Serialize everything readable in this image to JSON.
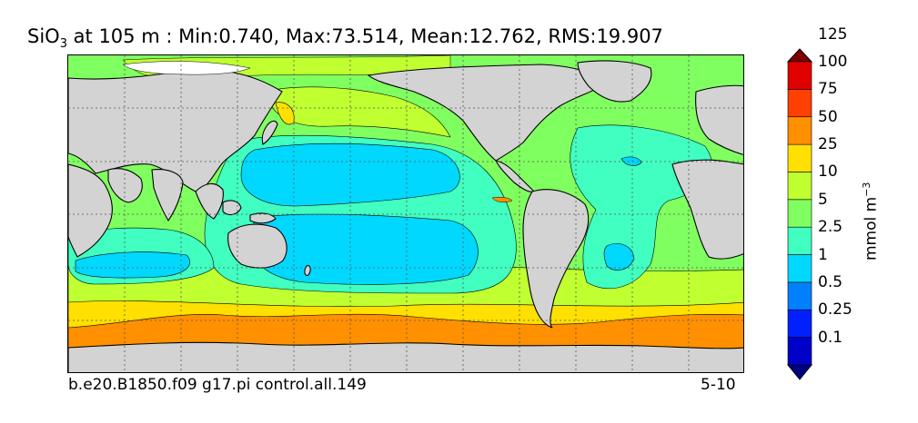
{
  "title": {
    "species_main": "SiO",
    "species_sub": "3",
    "rest": " at 105 m : Min:0.740, Max:73.514, Mean:12.762, RMS:19.907"
  },
  "footer": {
    "case": "b.e20.B1850.f09 g17.pi control.all.149",
    "years": "5-10"
  },
  "colorbar": {
    "unit_main": "mmol m",
    "unit_sup": "−3",
    "levels": [
      "0.1",
      "0.25",
      "0.5",
      "1",
      "2.5",
      "5",
      "10",
      "25",
      "50",
      "75",
      "100",
      "125"
    ],
    "colors": [
      "#000080",
      "#0000c8",
      "#0020ff",
      "#0080ff",
      "#00d8ff",
      "#40ffc0",
      "#80ff60",
      "#c0ff30",
      "#ffe000",
      "#ff9000",
      "#ff4000",
      "#e00000",
      "#800000"
    ]
  },
  "map": {
    "land_color": "#d3d3d3",
    "grid": "dashed"
  }
}
